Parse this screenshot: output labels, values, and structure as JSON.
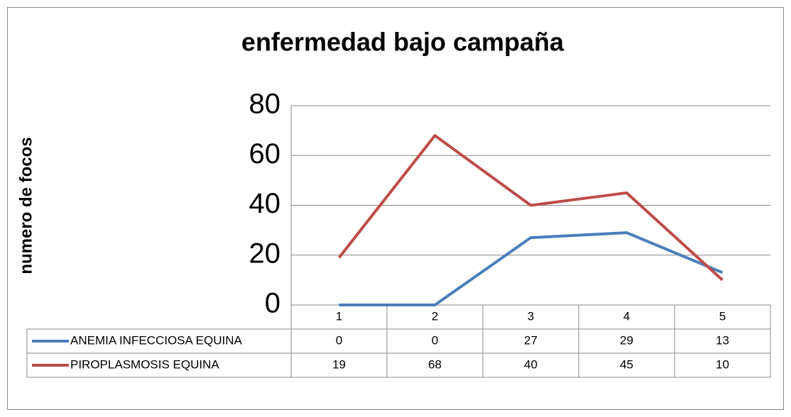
{
  "chart_data": {
    "type": "line",
    "title": "enfermedad bajo campaña",
    "y_label": "numero de focos",
    "categories": [
      "1",
      "2",
      "3",
      "4",
      "5"
    ],
    "series": [
      {
        "name": "ANEMIA INFECCIOSA EQUINA",
        "color": "#4a7ebb",
        "values": [
          0,
          0,
          27,
          29,
          13
        ]
      },
      {
        "name": "PIROPLASMOSIS EQUINA",
        "color": "#be4b48",
        "values": [
          19,
          68,
          40,
          45,
          10
        ]
      }
    ],
    "ylim": [
      0,
      80
    ],
    "yticks": [
      0,
      20,
      40,
      60,
      80
    ],
    "grid": true,
    "data_table": true
  }
}
